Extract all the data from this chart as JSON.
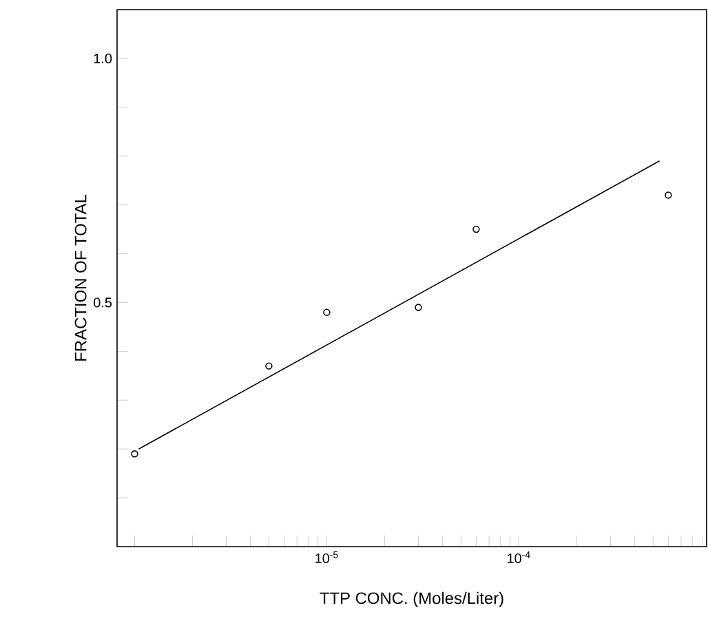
{
  "chart_data": {
    "type": "scatter",
    "xlabel": "TTP CONC. (Moles/Liter)",
    "ylabel": "FRACTION OF TOTAL",
    "log": "x",
    "grid": false,
    "xlim": [
      8.1e-07,
      0.00095
    ],
    "ylim": [
      0,
      1.1
    ],
    "xticks": [
      {
        "value": 1e-06,
        "label": null
      },
      {
        "value": 2e-06,
        "label": null
      },
      {
        "value": 3e-06,
        "label": null
      },
      {
        "value": 4e-06,
        "label": null
      },
      {
        "value": 5e-06,
        "label": null
      },
      {
        "value": 6e-06,
        "label": null
      },
      {
        "value": 7e-06,
        "label": null
      },
      {
        "value": 8e-06,
        "label": null
      },
      {
        "value": 9e-06,
        "label": null
      },
      {
        "value": 1e-05,
        "label": "10$^{-5}$"
      },
      {
        "value": 2e-05,
        "label": null
      },
      {
        "value": 3e-05,
        "label": null
      },
      {
        "value": 4e-05,
        "label": null
      },
      {
        "value": 5e-05,
        "label": null
      },
      {
        "value": 6e-05,
        "label": null
      },
      {
        "value": 7e-05,
        "label": null
      },
      {
        "value": 8e-05,
        "label": null
      },
      {
        "value": 9e-05,
        "label": null
      },
      {
        "value": 0.0001,
        "label": "10$^{-4}$"
      },
      {
        "value": 0.0002,
        "label": null
      },
      {
        "value": 0.0003,
        "label": null
      },
      {
        "value": 0.0004,
        "label": null
      },
      {
        "value": 0.0005,
        "label": null
      },
      {
        "value": 0.0006,
        "label": null
      },
      {
        "value": 0.0007,
        "label": null
      },
      {
        "value": 0.0008,
        "label": null
      },
      {
        "value": 0.0009,
        "label": null
      }
    ],
    "yticks": [
      {
        "value": 0.1,
        "label": null
      },
      {
        "value": 0.2,
        "label": null
      },
      {
        "value": 0.3,
        "label": null
      },
      {
        "value": 0.4,
        "label": null
      },
      {
        "value": 0.5,
        "label": "0.5"
      },
      {
        "value": 0.6,
        "label": null
      },
      {
        "value": 0.7,
        "label": null
      },
      {
        "value": 0.8,
        "label": null
      },
      {
        "value": 0.9,
        "label": null
      },
      {
        "value": 1.0,
        "label": "1.0"
      }
    ],
    "series": [
      {
        "marker": "circle",
        "color": "#000000",
        "x": [
          1e-06,
          5e-06,
          1e-05,
          3e-05,
          6e-05,
          0.0006
        ],
        "values": [
          0.19,
          0.37,
          0.48,
          0.49,
          0.65,
          0.72
        ]
      },
      {
        "type": "line",
        "marker": "none",
        "color": "#000000",
        "x": [
          1.05e-06,
          0.00054
        ],
        "values": [
          0.2,
          0.79
        ]
      }
    ]
  }
}
